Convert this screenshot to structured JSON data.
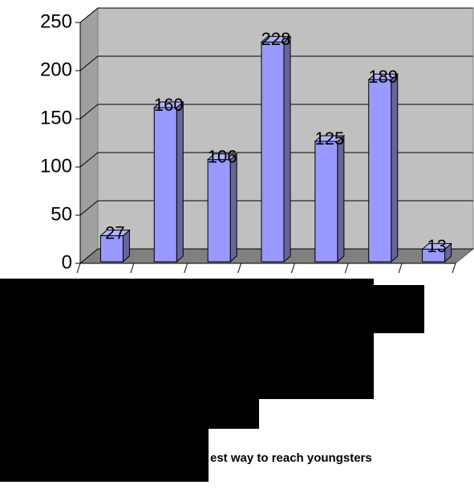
{
  "chart_data": {
    "type": "bar",
    "title": "est way to reach youngsters",
    "categories": [
      null,
      null,
      null,
      null,
      null,
      null,
      null
    ],
    "values": [
      27,
      160,
      106,
      228,
      125,
      189,
      13
    ],
    "color": "#9999ff",
    "ylim": [
      0,
      250
    ],
    "yticks": [
      0,
      50,
      100,
      150,
      200,
      250
    ],
    "grid": true,
    "data_labels": true
  }
}
